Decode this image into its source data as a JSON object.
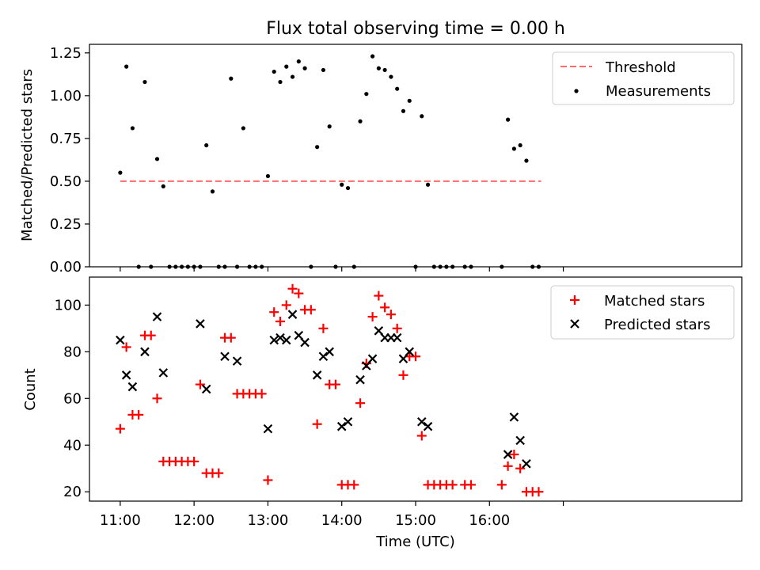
{
  "figure": {
    "title": "Flux total observing time = 0.00 h"
  },
  "chart_data": [
    {
      "type": "scatter",
      "title": "Flux total observing time = 0.00 h",
      "xlabel": "",
      "ylabel": "Matched/Predicted stars",
      "x_unit": "minutes after 11:00 UTC",
      "xlim": [
        -25,
        505
      ],
      "ylim": [
        0,
        1.3
      ],
      "yticks": [
        0,
        0.25,
        0.5,
        0.75,
        1.0,
        1.25
      ],
      "ytick_labels": [
        "0.00",
        "0.25",
        "0.50",
        "0.75",
        "1.00",
        "1.25"
      ],
      "xticks": [
        0,
        60,
        120,
        180,
        240,
        300,
        360
      ],
      "legend_position": "top-right",
      "grid": false,
      "colors": {
        "threshold": "#ff6b6b",
        "measurements": "#000000"
      },
      "series": [
        {
          "name": "Threshold",
          "kind": "line",
          "x": [
            0,
            342
          ],
          "y": [
            0.5,
            0.5
          ]
        },
        {
          "name": "Measurements",
          "kind": "points",
          "points": [
            [
              0,
              0.55
            ],
            [
              5,
              1.17
            ],
            [
              10,
              0.81
            ],
            [
              15,
              0
            ],
            [
              20,
              1.08
            ],
            [
              25,
              0
            ],
            [
              30,
              0.63
            ],
            [
              35,
              0.47
            ],
            [
              40,
              0
            ],
            [
              45,
              0
            ],
            [
              50,
              0
            ],
            [
              55,
              0
            ],
            [
              60,
              0
            ],
            [
              65,
              0
            ],
            [
              70,
              0.71
            ],
            [
              75,
              0.44
            ],
            [
              80,
              0
            ],
            [
              85,
              0
            ],
            [
              90,
              1.1
            ],
            [
              95,
              0
            ],
            [
              100,
              0.81
            ],
            [
              105,
              0
            ],
            [
              110,
              0
            ],
            [
              115,
              0
            ],
            [
              120,
              0.53
            ],
            [
              125,
              1.14
            ],
            [
              130,
              1.08
            ],
            [
              135,
              1.17
            ],
            [
              140,
              1.11
            ],
            [
              145,
              1.2
            ],
            [
              150,
              1.16
            ],
            [
              155,
              0
            ],
            [
              160,
              0.7
            ],
            [
              165,
              1.15
            ],
            [
              170,
              0.82
            ],
            [
              175,
              0
            ],
            [
              180,
              0.48
            ],
            [
              185,
              0.46
            ],
            [
              190,
              0
            ],
            [
              195,
              0.85
            ],
            [
              200,
              1.01
            ],
            [
              205,
              1.23
            ],
            [
              210,
              1.16
            ],
            [
              215,
              1.15
            ],
            [
              220,
              1.11
            ],
            [
              225,
              1.04
            ],
            [
              230,
              0.91
            ],
            [
              235,
              0.97
            ],
            [
              240,
              0
            ],
            [
              245,
              0.88
            ],
            [
              250,
              0.48
            ],
            [
              255,
              0
            ],
            [
              260,
              0
            ],
            [
              265,
              0
            ],
            [
              270,
              0
            ],
            [
              280,
              0
            ],
            [
              285,
              0
            ],
            [
              310,
              0
            ],
            [
              315,
              0.86
            ],
            [
              320,
              0.69
            ],
            [
              325,
              0.71
            ],
            [
              330,
              0.62
            ],
            [
              335,
              0
            ],
            [
              340,
              0
            ]
          ]
        }
      ]
    },
    {
      "type": "scatter",
      "title": "",
      "xlabel": "Time (UTC)",
      "ylabel": "Count",
      "x_unit": "minutes after 11:00 UTC",
      "xlim": [
        -25,
        505
      ],
      "ylim": [
        16,
        112
      ],
      "yticks": [
        20,
        40,
        60,
        80,
        100
      ],
      "ytick_labels": [
        "20",
        "40",
        "60",
        "80",
        "100"
      ],
      "xticks": [
        0,
        60,
        120,
        180,
        240,
        300,
        360
      ],
      "xtick_labels": [
        "11:00",
        "12:00",
        "13:00",
        "14:00",
        "15:00",
        "16:00"
      ],
      "legend_position": "top-right",
      "grid": false,
      "colors": {
        "matched": "#ff0000",
        "predicted": "#000000"
      },
      "series": [
        {
          "name": "Matched stars",
          "marker": "plus",
          "points": [
            [
              0,
              47
            ],
            [
              5,
              82
            ],
            [
              10,
              53
            ],
            [
              15,
              53
            ],
            [
              20,
              87
            ],
            [
              25,
              87
            ],
            [
              30,
              60
            ],
            [
              35,
              33
            ],
            [
              40,
              33
            ],
            [
              45,
              33
            ],
            [
              50,
              33
            ],
            [
              55,
              33
            ],
            [
              60,
              33
            ],
            [
              65,
              66
            ],
            [
              70,
              28
            ],
            [
              75,
              28
            ],
            [
              80,
              28
            ],
            [
              85,
              86
            ],
            [
              90,
              86
            ],
            [
              95,
              62
            ],
            [
              100,
              62
            ],
            [
              105,
              62
            ],
            [
              110,
              62
            ],
            [
              115,
              62
            ],
            [
              120,
              25
            ],
            [
              125,
              97
            ],
            [
              130,
              93
            ],
            [
              135,
              100
            ],
            [
              140,
              107
            ],
            [
              145,
              105
            ],
            [
              150,
              98
            ],
            [
              155,
              98
            ],
            [
              160,
              49
            ],
            [
              165,
              90
            ],
            [
              170,
              66
            ],
            [
              175,
              66
            ],
            [
              180,
              23
            ],
            [
              185,
              23
            ],
            [
              190,
              23
            ],
            [
              195,
              58
            ],
            [
              200,
              75
            ],
            [
              205,
              95
            ],
            [
              210,
              104
            ],
            [
              215,
              99
            ],
            [
              220,
              96
            ],
            [
              225,
              90
            ],
            [
              230,
              70
            ],
            [
              235,
              78
            ],
            [
              240,
              78
            ],
            [
              245,
              44
            ],
            [
              250,
              23
            ],
            [
              255,
              23
            ],
            [
              260,
              23
            ],
            [
              265,
              23
            ],
            [
              270,
              23
            ],
            [
              280,
              23
            ],
            [
              285,
              23
            ],
            [
              310,
              23
            ],
            [
              315,
              31
            ],
            [
              320,
              36
            ],
            [
              325,
              30
            ],
            [
              330,
              20
            ],
            [
              335,
              20
            ],
            [
              340,
              20
            ]
          ]
        },
        {
          "name": "Predicted stars",
          "marker": "x",
          "points": [
            [
              0,
              85
            ],
            [
              5,
              70
            ],
            [
              10,
              65
            ],
            [
              20,
              80
            ],
            [
              30,
              95
            ],
            [
              35,
              71
            ],
            [
              65,
              92
            ],
            [
              70,
              64
            ],
            [
              85,
              78
            ],
            [
              95,
              76
            ],
            [
              120,
              47
            ],
            [
              125,
              85
            ],
            [
              130,
              86
            ],
            [
              135,
              85
            ],
            [
              140,
              96
            ],
            [
              145,
              87
            ],
            [
              150,
              84
            ],
            [
              160,
              70
            ],
            [
              165,
              78
            ],
            [
              170,
              80
            ],
            [
              180,
              48
            ],
            [
              185,
              50
            ],
            [
              195,
              68
            ],
            [
              200,
              74
            ],
            [
              205,
              77
            ],
            [
              210,
              89
            ],
            [
              215,
              86
            ],
            [
              220,
              86
            ],
            [
              225,
              86
            ],
            [
              230,
              77
            ],
            [
              235,
              80
            ],
            [
              245,
              50
            ],
            [
              250,
              48
            ],
            [
              315,
              36
            ],
            [
              320,
              52
            ],
            [
              325,
              42
            ],
            [
              330,
              32
            ]
          ]
        }
      ]
    }
  ]
}
